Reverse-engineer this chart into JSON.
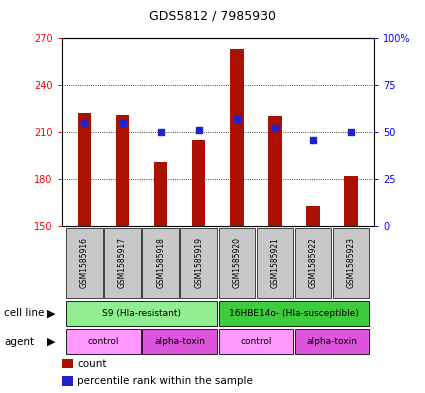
{
  "title": "GDS5812 / 7985930",
  "samples": [
    "GSM1585916",
    "GSM1585917",
    "GSM1585918",
    "GSM1585919",
    "GSM1585920",
    "GSM1585921",
    "GSM1585922",
    "GSM1585923"
  ],
  "counts": [
    222,
    221,
    191,
    205,
    263,
    220,
    163,
    182
  ],
  "percentiles": [
    55,
    55,
    50,
    51,
    57,
    52,
    46,
    50
  ],
  "ymin": 150,
  "ymax": 270,
  "yticks": [
    150,
    180,
    210,
    240,
    270
  ],
  "y2min": 0,
  "y2max": 100,
  "y2ticks": [
    0,
    25,
    50,
    75,
    100
  ],
  "cell_line_groups": [
    {
      "label": "S9 (Hla-resistant)",
      "start": 0,
      "end": 4,
      "color": "#90EE90"
    },
    {
      "label": "16HBE14o- (Hla-susceptible)",
      "start": 4,
      "end": 8,
      "color": "#3CCC3C"
    }
  ],
  "agent_groups": [
    {
      "label": "control",
      "start": 0,
      "end": 2,
      "color": "#FF99FF"
    },
    {
      "label": "alpha-toxin",
      "start": 2,
      "end": 4,
      "color": "#DD55DD"
    },
    {
      "label": "control",
      "start": 4,
      "end": 6,
      "color": "#FF99FF"
    },
    {
      "label": "alpha-toxin",
      "start": 6,
      "end": 8,
      "color": "#DD55DD"
    }
  ],
  "bar_color": "#AA1100",
  "dot_color": "#2222CC",
  "sample_bg_color": "#C8C8C8",
  "bar_width": 0.35
}
